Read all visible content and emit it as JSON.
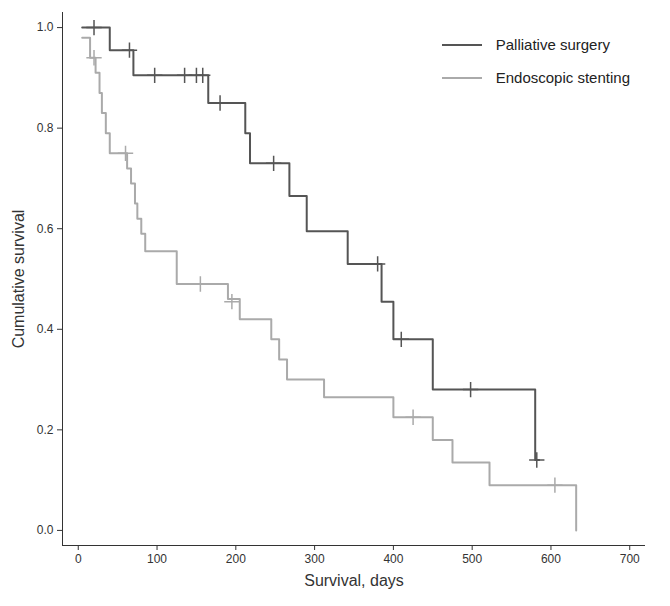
{
  "chart_data": {
    "type": "step",
    "xlabel": "Survival, days",
    "ylabel": "Cumulative survival",
    "xlim": [
      -20,
      720
    ],
    "xticks": [
      0,
      100,
      200,
      300,
      400,
      500,
      600,
      700
    ],
    "ylim": [
      -0.03,
      1.03
    ],
    "yticks": [
      {
        "value": 0,
        "label": "0.0"
      },
      0.2,
      0.4,
      0.6,
      0.8,
      {
        "value": 1,
        "label": "1.0"
      }
    ],
    "legend": "top-right",
    "grid": false,
    "series": [
      {
        "name": "Palliative surgery",
        "color": "#555555",
        "marker": "plus",
        "x": [
          5,
          40,
          70,
          165,
          212,
          218,
          268,
          290,
          342,
          385,
          400,
          450,
          580,
          585
        ],
        "values": [
          1.0,
          0.955,
          0.905,
          0.85,
          0.79,
          0.73,
          0.665,
          0.595,
          0.53,
          0.455,
          0.38,
          0.28,
          0.14,
          0.14
        ],
        "censored_x": [
          20,
          65,
          97,
          135,
          150,
          158,
          180,
          248,
          380,
          410,
          498,
          582
        ],
        "censored_y": [
          1.0,
          0.955,
          0.905,
          0.905,
          0.905,
          0.905,
          0.85,
          0.73,
          0.53,
          0.38,
          0.28,
          0.14
        ]
      },
      {
        "name": "Endoscopic stenting",
        "color": "#aaaaaa",
        "marker": "plus",
        "x": [
          5,
          15,
          22,
          27,
          30,
          35,
          40,
          62,
          67,
          72,
          75,
          80,
          85,
          125,
          190,
          205,
          245,
          255,
          265,
          312,
          400,
          450,
          475,
          522,
          632
        ],
        "values": [
          0.98,
          0.94,
          0.91,
          0.87,
          0.83,
          0.79,
          0.75,
          0.72,
          0.69,
          0.65,
          0.62,
          0.59,
          0.555,
          0.49,
          0.46,
          0.42,
          0.38,
          0.34,
          0.3,
          0.265,
          0.225,
          0.18,
          0.135,
          0.09,
          0.0
        ],
        "censored_x": [
          20,
          60,
          155,
          195,
          425,
          605
        ],
        "censored_y": [
          0.94,
          0.75,
          0.49,
          0.455,
          0.225,
          0.09
        ]
      }
    ]
  }
}
